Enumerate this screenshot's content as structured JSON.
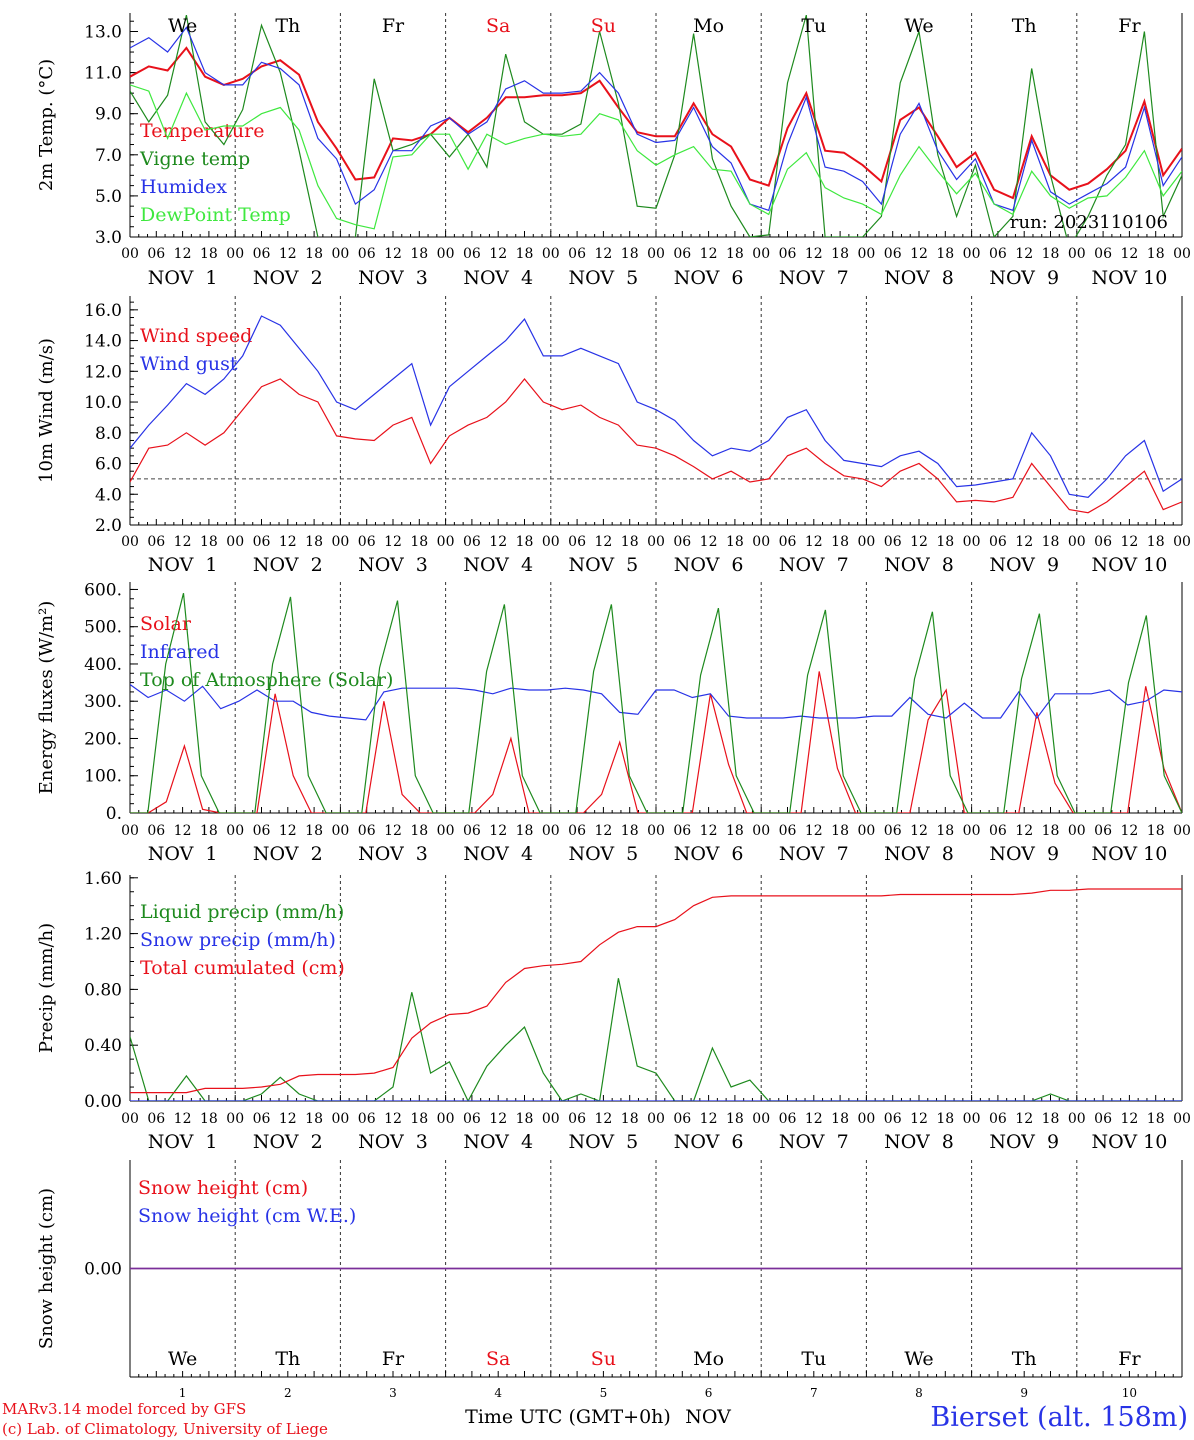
{
  "days": {
    "weekdays": [
      "We",
      "Th",
      "Fr",
      "Sa",
      "Su",
      "Mo",
      "Tu",
      "We",
      "Th",
      "Fr"
    ],
    "weekend_flags": [
      false,
      false,
      false,
      true,
      true,
      false,
      false,
      false,
      false,
      false
    ],
    "day_labels": [
      "NOV  1",
      "NOV  2",
      "NOV  3",
      "NOV  4",
      "NOV  5",
      "NOV  6",
      "NOV  7",
      "NOV  8",
      "NOV  9",
      "NOV 10"
    ],
    "day_numbers": [
      "1",
      "2",
      "3",
      "4",
      "5",
      "6",
      "7",
      "8",
      "9",
      "10"
    ],
    "hour_ticks": [
      "00",
      "06",
      "12",
      "18"
    ],
    "final_tick": "00"
  },
  "colors": {
    "red": "#e8111b",
    "darkgreen": "#1e8a1e",
    "blue": "#2833e6",
    "lightgreen": "#3fe83f",
    "purple": "#7a2f9a",
    "weekend": "#e8111b"
  },
  "footer": {
    "model_line": "MARv3.14 model forced by GFS",
    "lab_line": "(c) Lab. of Climatology, University of Liege",
    "xlabel": "Time UTC (GMT+0h)",
    "xlabel_month": "NOV",
    "station": "Bierset (alt. 158m)"
  },
  "chart_data": [
    {
      "type": "line",
      "ylabel": "2m Temp. (°C)",
      "ylim": [
        3.0,
        13.9
      ],
      "yticks": [
        "3.0",
        "5.0",
        "7.0",
        "9.0",
        "11.0",
        "13.0"
      ],
      "annotation": "run: 2023110106",
      "x_unit": "hours since 2023-11-01 00 UTC (6-hourly points)",
      "series": [
        {
          "name": "Temperature",
          "color": "#e8111b",
          "values": [
            10.8,
            11.3,
            11.1,
            12.2,
            10.8,
            10.4,
            10.7,
            11.3,
            11.6,
            10.9,
            8.6,
            7.3,
            5.8,
            5.9,
            7.8,
            7.7,
            8.0,
            8.8,
            8.1,
            8.8,
            9.8,
            9.8,
            9.9,
            9.9,
            10.0,
            10.6,
            9.3,
            8.1,
            7.9,
            7.9,
            9.5,
            8.0,
            7.4,
            5.8,
            5.5,
            8.3,
            10.0,
            7.2,
            7.1,
            6.5,
            5.7,
            8.7,
            9.3,
            7.9,
            6.4,
            7.1,
            5.3,
            4.9,
            7.9,
            6.0,
            5.3,
            5.6,
            6.3,
            7.2,
            9.6,
            6.0,
            7.3
          ]
        },
        {
          "name": "Vigne temp",
          "color": "#1e8a1e",
          "values": [
            10.1,
            8.6,
            9.9,
            13.8,
            8.6,
            7.5,
            9.2,
            13.3,
            11.0,
            7.2,
            3.0,
            2.5,
            3.0,
            10.7,
            7.2,
            7.5,
            8.0,
            6.9,
            8.0,
            6.4,
            11.9,
            8.6,
            8.0,
            8.0,
            8.5,
            13.0,
            9.5,
            4.5,
            4.4,
            7.0,
            12.9,
            6.8,
            4.5,
            3.0,
            3.1,
            10.5,
            13.8,
            3.0,
            3.0,
            3.0,
            4.0,
            10.5,
            13.0,
            7.0,
            4.0,
            6.5,
            3.0,
            4.0,
            11.2,
            6.0,
            2.5,
            4.0,
            6.0,
            7.5,
            13.0,
            4.0,
            6.0
          ]
        },
        {
          "name": "Humidex",
          "color": "#2833e6",
          "values": [
            12.2,
            12.7,
            12.0,
            13.2,
            11.0,
            10.4,
            10.4,
            11.5,
            11.2,
            10.4,
            7.8,
            6.8,
            4.6,
            5.3,
            7.2,
            7.2,
            8.4,
            8.8,
            8.0,
            8.6,
            10.2,
            10.6,
            10.0,
            10.0,
            10.1,
            11.0,
            10.0,
            8.0,
            7.6,
            7.7,
            9.3,
            7.4,
            6.6,
            4.6,
            4.3,
            7.5,
            9.8,
            6.4,
            6.2,
            5.7,
            4.6,
            8.0,
            9.5,
            7.2,
            5.8,
            6.8,
            4.6,
            4.3,
            7.7,
            5.2,
            4.6,
            5.1,
            5.6,
            6.4,
            9.3,
            5.5,
            6.9
          ]
        },
        {
          "name": "DewPoint Temp",
          "color": "#3fe83f",
          "values": [
            10.4,
            10.1,
            7.8,
            10.0,
            8.2,
            8.4,
            8.4,
            9.0,
            9.3,
            8.2,
            5.5,
            3.9,
            3.6,
            3.4,
            6.9,
            7.0,
            8.0,
            8.0,
            6.3,
            8.0,
            7.5,
            7.8,
            8.0,
            7.9,
            8.0,
            9.0,
            8.7,
            7.2,
            6.5,
            7.0,
            7.4,
            6.3,
            6.2,
            4.6,
            4.1,
            6.3,
            7.1,
            5.4,
            4.9,
            4.6,
            4.1,
            6.0,
            7.4,
            6.2,
            5.1,
            6.1,
            4.6,
            4.1,
            6.2,
            5.0,
            4.4,
            4.9,
            5.0,
            5.9,
            7.2,
            5.0,
            6.2
          ]
        }
      ]
    },
    {
      "type": "line",
      "ylabel": "10m Wind (m/s)",
      "ylim": [
        2.0,
        16.9
      ],
      "yticks": [
        "2.0",
        "4.0",
        "6.0",
        "8.0",
        "10.0",
        "12.0",
        "14.0",
        "16.0"
      ],
      "reference_line": 5.0,
      "x_unit": "hours since 2023-11-01 00 UTC (6-hourly points)",
      "series": [
        {
          "name": "Wind speed",
          "color": "#e8111b",
          "values": [
            4.8,
            7.0,
            7.2,
            8.0,
            7.2,
            8.0,
            9.5,
            11.0,
            11.5,
            10.5,
            10.0,
            7.8,
            7.6,
            7.5,
            8.5,
            9.0,
            6.0,
            7.8,
            8.5,
            9.0,
            10.0,
            11.5,
            10.0,
            9.5,
            9.8,
            9.0,
            8.5,
            7.2,
            7.0,
            6.5,
            5.8,
            5.0,
            5.5,
            4.8,
            5.0,
            6.5,
            7.0,
            6.0,
            5.2,
            5.0,
            4.5,
            5.5,
            6.0,
            5.0,
            3.5,
            3.6,
            3.5,
            3.8,
            6.0,
            4.5,
            3.0,
            2.8,
            3.5,
            4.5,
            5.5,
            3.0,
            3.5
          ]
        },
        {
          "name": "Wind gust",
          "color": "#2833e6",
          "values": [
            7.0,
            8.5,
            9.8,
            11.2,
            10.5,
            11.5,
            13.0,
            15.6,
            15.0,
            13.5,
            12.0,
            10.0,
            9.5,
            10.5,
            11.5,
            12.5,
            8.5,
            11.0,
            12.0,
            13.0,
            14.0,
            15.4,
            13.0,
            13.0,
            13.5,
            13.0,
            12.5,
            10.0,
            9.5,
            8.8,
            7.5,
            6.5,
            7.0,
            6.8,
            7.5,
            9.0,
            9.5,
            7.5,
            6.2,
            6.0,
            5.8,
            6.5,
            6.8,
            6.0,
            4.5,
            4.6,
            4.8,
            5.0,
            8.0,
            6.5,
            4.0,
            3.8,
            5.0,
            6.5,
            7.5,
            4.2,
            5.0
          ]
        }
      ]
    },
    {
      "type": "line",
      "ylabel": "Energy fluxes (W/m²)",
      "ylim": [
        0,
        620
      ],
      "yticks": [
        "0.",
        "100.",
        "200.",
        "300.",
        "400.",
        "500.",
        "600."
      ],
      "x_unit": "hours since 2023-11-01 00 UTC (6-hourly points)",
      "series": [
        {
          "name": "Solar",
          "color": "#e8111b",
          "values": [
            0,
            0,
            30,
            180,
            10,
            0,
            0,
            0,
            320,
            100,
            0,
            0,
            0,
            0,
            300,
            50,
            0,
            0,
            0,
            0,
            50,
            200,
            0,
            0,
            0,
            0,
            50,
            190,
            0,
            0,
            0,
            0,
            320,
            130,
            0,
            0,
            0,
            0,
            380,
            120,
            0,
            0,
            0,
            0,
            250,
            330,
            0,
            0,
            0,
            0,
            270,
            80,
            0,
            0,
            0,
            0,
            340,
            120,
            0
          ]
        },
        {
          "name": "Infrared",
          "color": "#2833e6",
          "values": [
            345,
            310,
            330,
            300,
            340,
            280,
            300,
            330,
            300,
            300,
            270,
            260,
            255,
            250,
            325,
            335,
            335,
            335,
            335,
            330,
            320,
            335,
            330,
            330,
            335,
            330,
            320,
            270,
            265,
            330,
            330,
            310,
            320,
            260,
            255,
            255,
            255,
            260,
            255,
            255,
            255,
            260,
            260,
            310,
            265,
            255,
            295,
            255,
            255,
            325,
            255,
            320,
            320,
            320,
            330,
            290,
            300,
            330,
            325
          ]
        },
        {
          "name": "Top of Atmosphere (Solar)",
          "color": "#1e8a1e",
          "values": [
            0,
            0,
            400,
            590,
            100,
            0,
            0,
            0,
            400,
            580,
            100,
            0,
            0,
            0,
            390,
            570,
            100,
            0,
            0,
            0,
            380,
            560,
            100,
            0,
            0,
            0,
            380,
            560,
            100,
            0,
            0,
            0,
            370,
            550,
            100,
            0,
            0,
            0,
            370,
            545,
            100,
            0,
            0,
            0,
            360,
            540,
            100,
            0,
            0,
            0,
            360,
            535,
            100,
            0,
            0,
            0,
            350,
            530,
            100,
            0
          ]
        }
      ]
    },
    {
      "type": "line",
      "ylabel": "Precip (mm/h)",
      "ylim": [
        0.0,
        1.62
      ],
      "yticks": [
        "0.00",
        "0.40",
        "0.80",
        "1.20",
        "1.60"
      ],
      "x_unit": "hours since 2023-11-01 00 UTC (6-hourly points)",
      "series": [
        {
          "name": "Liquid precip (mm/h)",
          "color": "#1e8a1e",
          "values": [
            0.46,
            0.0,
            0.0,
            0.18,
            0.0,
            0.0,
            0.0,
            0.05,
            0.17,
            0.05,
            0.0,
            0.0,
            0.0,
            0.0,
            0.1,
            0.78,
            0.2,
            0.28,
            0.0,
            0.25,
            0.4,
            0.53,
            0.2,
            0.0,
            0.05,
            0.0,
            0.88,
            0.25,
            0.2,
            0.0,
            0.0,
            0.38,
            0.1,
            0.15,
            0.0,
            0.0,
            0.0,
            0.0,
            0.0,
            0.0,
            0.0,
            0.0,
            0.0,
            0.0,
            0.0,
            0.0,
            0.0,
            0.0,
            0.0,
            0.05,
            0.0,
            0.0,
            0.0,
            0.0,
            0.0,
            0.0,
            0.0
          ]
        },
        {
          "name": "Snow precip (mm/h)",
          "color": "#2833e6",
          "values": [
            0,
            0,
            0,
            0,
            0,
            0,
            0,
            0,
            0,
            0,
            0,
            0,
            0,
            0,
            0,
            0,
            0,
            0,
            0,
            0,
            0,
            0,
            0,
            0,
            0,
            0,
            0,
            0,
            0,
            0,
            0,
            0,
            0,
            0,
            0,
            0,
            0,
            0,
            0,
            0,
            0,
            0,
            0,
            0,
            0,
            0,
            0,
            0,
            0,
            0,
            0,
            0,
            0,
            0,
            0,
            0,
            0
          ]
        },
        {
          "name": "Total cumulated (cm)",
          "color": "#e8111b",
          "values": [
            0.06,
            0.06,
            0.06,
            0.06,
            0.09,
            0.09,
            0.09,
            0.1,
            0.12,
            0.18,
            0.19,
            0.19,
            0.19,
            0.2,
            0.24,
            0.45,
            0.56,
            0.62,
            0.63,
            0.68,
            0.85,
            0.95,
            0.97,
            0.98,
            1.0,
            1.12,
            1.21,
            1.25,
            1.25,
            1.3,
            1.4,
            1.46,
            1.47,
            1.47,
            1.47,
            1.47,
            1.47,
            1.47,
            1.47,
            1.47,
            1.47,
            1.48,
            1.48,
            1.48,
            1.48,
            1.48,
            1.48,
            1.48,
            1.49,
            1.51,
            1.51,
            1.52,
            1.52,
            1.52,
            1.52,
            1.52,
            1.52
          ]
        }
      ]
    },
    {
      "type": "line",
      "ylabel": "Snow height (cm)",
      "ylim": [
        -1,
        1
      ],
      "yticks": [
        "0.00"
      ],
      "x_unit": "hours since 2023-11-01 00 UTC (6-hourly points)",
      "series": [
        {
          "name": "Snow height (cm)",
          "color": "#e8111b",
          "values": [
            0,
            0,
            0,
            0,
            0,
            0,
            0,
            0,
            0,
            0,
            0,
            0,
            0,
            0,
            0,
            0,
            0,
            0,
            0,
            0,
            0,
            0,
            0,
            0,
            0,
            0,
            0,
            0,
            0,
            0,
            0,
            0,
            0,
            0,
            0,
            0,
            0,
            0,
            0,
            0,
            0,
            0
          ]
        },
        {
          "name": "Snow height (cm W.E.)",
          "color": "#2833e6",
          "values": [
            0,
            0,
            0,
            0,
            0,
            0,
            0,
            0,
            0,
            0,
            0,
            0,
            0,
            0,
            0,
            0,
            0,
            0,
            0,
            0,
            0,
            0,
            0,
            0,
            0,
            0,
            0,
            0,
            0,
            0,
            0,
            0,
            0,
            0,
            0,
            0,
            0,
            0,
            0,
            0,
            0,
            0
          ]
        }
      ]
    }
  ]
}
